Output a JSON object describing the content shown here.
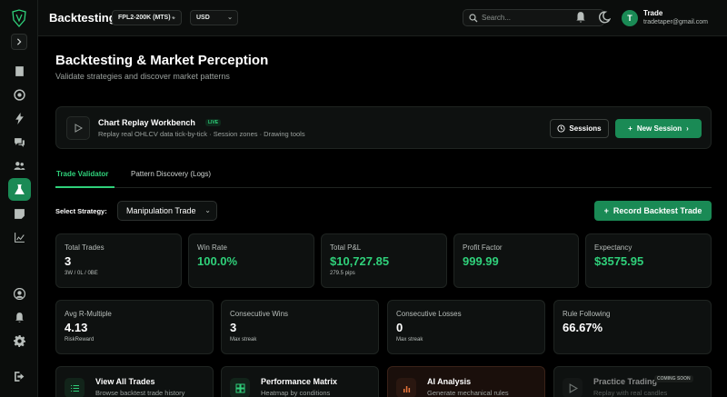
{
  "topbar": {
    "app_title": "Backtesting",
    "account_select": "FPL2-200K (MTS) -",
    "currency_select": "USD",
    "search_placeholder": "Search...",
    "user": {
      "initial": "T",
      "name": "Trade",
      "email": "tradetaper@gmail.com"
    }
  },
  "page": {
    "title": "Backtesting & Market Perception",
    "subtitle": "Validate strategies and discover market patterns"
  },
  "workbench": {
    "title": "Chart Replay Workbench",
    "badge": "LIVE",
    "subtitle": "Replay real OHLCV data tick-by-tick · Session zones · Drawing tools",
    "sessions_label": "Sessions",
    "new_session_label": "New Session",
    "new_session_chevron": "›"
  },
  "tabs": [
    {
      "label": "Trade Validator",
      "active": true
    },
    {
      "label": "Pattern Discovery (Logs)",
      "active": false
    }
  ],
  "strategy": {
    "label": "Select Strategy:",
    "value": "Manipulation Trade",
    "record_label": "Record Backtest Trade",
    "record_prefix": "+"
  },
  "stats_row1": [
    {
      "label": "Total Trades",
      "value": "3",
      "sub": "3W / 0L / 0BE",
      "green": false
    },
    {
      "label": "Win Rate",
      "value": "100.0%",
      "sub": "",
      "green": true
    },
    {
      "label": "Total P&L",
      "value": "$10,727.85",
      "sub": "279.5 pips",
      "green": true
    },
    {
      "label": "Profit Factor",
      "value": "999.99",
      "sub": "",
      "green": true
    },
    {
      "label": "Expectancy",
      "value": "$3575.95",
      "sub": "",
      "green": true
    }
  ],
  "stats_row2": [
    {
      "label": "Avg R-Multiple",
      "value": "4.13",
      "sub": "RiskReward"
    },
    {
      "label": "Consecutive Wins",
      "value": "3",
      "sub": "Max streak"
    },
    {
      "label": "Consecutive Losses",
      "value": "0",
      "sub": "Max streak"
    },
    {
      "label": "Rule Following",
      "value": "66.67%",
      "sub": ""
    }
  ],
  "quick_links": [
    {
      "title": "View All Trades",
      "sub": "Browse backtest trade history",
      "icon": "list-icon"
    },
    {
      "title": "Performance Matrix",
      "sub": "Heatmap by conditions",
      "icon": "grid-icon"
    },
    {
      "title": "AI Analysis",
      "sub": "Generate mechanical rules",
      "icon": "bar-chart-icon"
    },
    {
      "title": "Practice Trading",
      "sub": "Replay with real candles",
      "icon": "play-icon",
      "badge": "COMING SOON"
    }
  ],
  "colors": {
    "accent": "#1a8a55",
    "positive": "#2fd07a",
    "background": "#000000",
    "card": "#0e1110"
  }
}
